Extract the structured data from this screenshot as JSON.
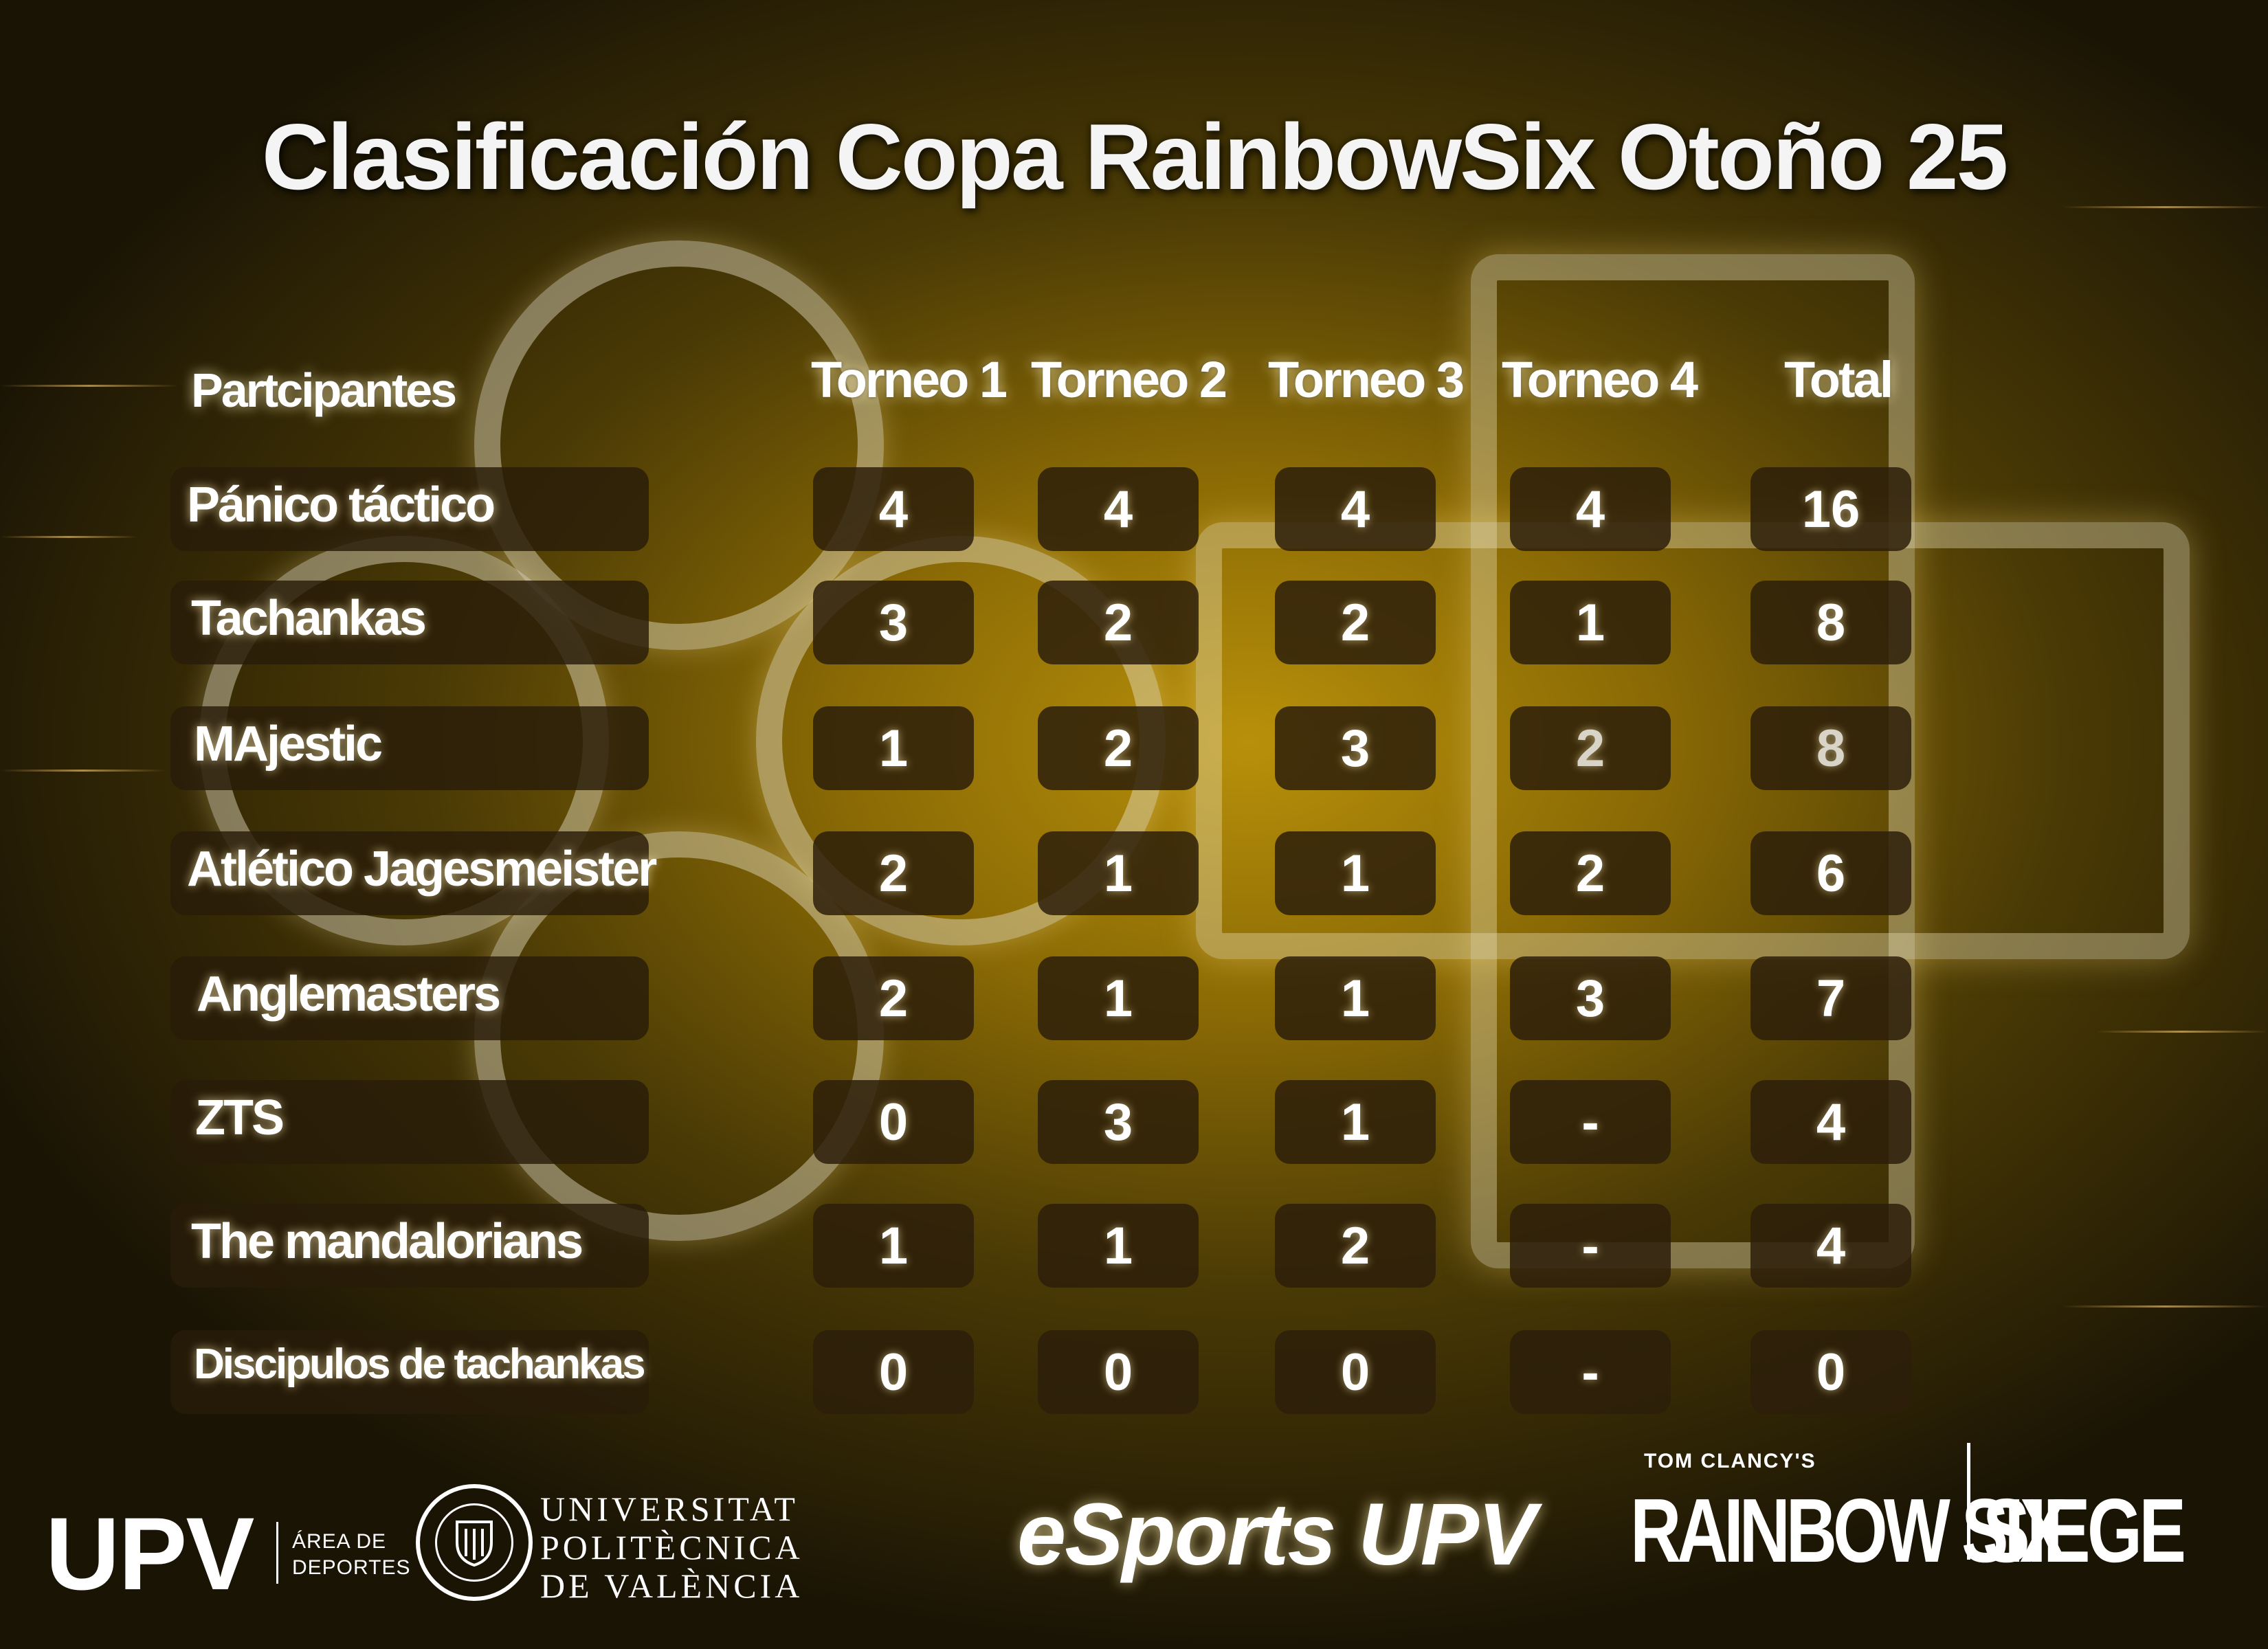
{
  "title": "Clasificación Copa RainbowSix Otoño 25",
  "headers": {
    "participants": "Partcipantes",
    "t1": "Torneo 1",
    "t2": "Torneo 2",
    "t3": "Torneo 3",
    "t4": "Torneo 4",
    "total": "Total"
  },
  "rows": [
    {
      "name": "Pánico táctico",
      "t1": "4",
      "t2": "4",
      "t3": "4",
      "t4": "4",
      "total": "16"
    },
    {
      "name": "Tachankas",
      "t1": "3",
      "t2": "2",
      "t3": "2",
      "t4": "1",
      "total": "8"
    },
    {
      "name": "MAjestic",
      "t1": "1",
      "t2": "2",
      "t3": "3",
      "t4": "2",
      "total": "8"
    },
    {
      "name": "Atlético Jagesmeister",
      "t1": "2",
      "t2": "1",
      "t3": "1",
      "t4": "2",
      "total": "6"
    },
    {
      "name": "Anglemasters",
      "t1": "2",
      "t2": "1",
      "t3": "1",
      "t4": "3",
      "total": "7"
    },
    {
      "name": "ZTS",
      "t1": "0",
      "t2": "3",
      "t3": "1",
      "t4": "-",
      "total": "4"
    },
    {
      "name": "The mandalorians",
      "t1": "1",
      "t2": "1",
      "t3": "2",
      "t4": "-",
      "total": "4"
    },
    {
      "name": "Discipulos de tachankas",
      "t1": "0",
      "t2": "0",
      "t3": "0",
      "t4": "-",
      "total": "0"
    }
  ],
  "footer": {
    "upv": "UPV",
    "area_line1": "ÁREA DE",
    "area_line2": "DEPORTES",
    "univ_line1": "UNIVERSITAT",
    "univ_line2": "POLITÈCNICA",
    "univ_line3": "DE VALÈNCIA",
    "esports": "eSports UPV",
    "tom_clancys": "TOM CLANCY'S",
    "rainbow_six": "RAINBOW SIX",
    "siege": "SIEGE"
  },
  "colors": {
    "accent": "#b8900a",
    "cell": "#2d1e0a"
  }
}
